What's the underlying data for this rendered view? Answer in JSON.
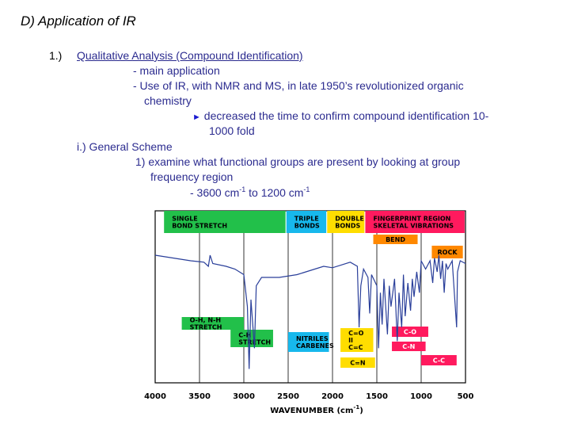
{
  "slide": {
    "title": "D) Application of IR",
    "item_number": "1.)",
    "heading": "Qualitative Analysis (Compound Identification)",
    "line1": "- main application",
    "line2": "- Use of IR, with NMR and MS, in late 1950’s revolutionized organic",
    "line2b": "chemistry",
    "bullet_glyph": "►",
    "line3": "decreased the time to confirm compound identification 10-",
    "line3b": "1000 fold",
    "sub_heading": "i.) General Scheme",
    "step1": "1) examine what functional groups are present by looking at group",
    "step1b": "frequency region",
    "range_prefix": "- 3600 cm",
    "range_exp1": "-1",
    "range_mid": " to 1200 cm",
    "range_exp2": "-1"
  },
  "chart_data": {
    "type": "line",
    "title": "",
    "xlabel_prefix": "WAVENUMBER (cm",
    "xlabel_exp": "-1",
    "xlabel_suffix": ")",
    "xlim": [
      4000,
      500
    ],
    "ylabel": "",
    "grid": true,
    "x_ticks": [
      "4000",
      "3500",
      "3000",
      "2500",
      "2000",
      "1500",
      "1000",
      "500"
    ],
    "regions": [
      {
        "name": "single-bond-stretch",
        "lines": [
          "SINGLE",
          "BOND STRETCH"
        ],
        "color": "#22c04a"
      },
      {
        "name": "triple-bonds",
        "lines": [
          "TRIPLE",
          "BONDS"
        ],
        "color": "#17b8ec"
      },
      {
        "name": "double-bonds",
        "lines": [
          "DOUBLE",
          "BONDS"
        ],
        "color": "#ffdd00"
      },
      {
        "name": "fingerprint-region",
        "lines": [
          "FINGERPRINT REGION",
          "SKELETAL VIBRATIONS"
        ],
        "color": "#ff1a5e"
      },
      {
        "name": "bend",
        "lines": [
          "BEND"
        ],
        "color": "#ff8800"
      },
      {
        "name": "rock",
        "lines": [
          "ROCK"
        ],
        "color": "#ff8800"
      }
    ],
    "annotations": [
      {
        "name": "oh-nh-stretch",
        "lines": [
          "O-H, N-H",
          "STRETCH"
        ],
        "color": "#22c04a"
      },
      {
        "name": "ch-stretch",
        "lines": [
          "C-H",
          "STRETCH"
        ],
        "color": "#22c04a"
      },
      {
        "name": "nitriles-carbenes",
        "lines": [
          "NITRILES",
          "CARBENES"
        ],
        "color": "#17b8ec"
      },
      {
        "name": "co-cc-double",
        "lines": [
          "C=O",
          "II",
          "C=C"
        ],
        "color": "#ffdd00"
      },
      {
        "name": "cn-double",
        "lines": [
          "C=N"
        ],
        "color": "#ffdd00"
      },
      {
        "name": "c-o-single",
        "lines": [
          "C-O"
        ],
        "color": "#ff1a5e"
      },
      {
        "name": "c-n-single",
        "lines": [
          "C-N"
        ],
        "color": "#ff1a5e"
      },
      {
        "name": "c-c-single",
        "lines": [
          "C-C"
        ],
        "color": "#ff1a5e"
      }
    ],
    "spectrum": [
      [
        4000,
        8
      ],
      [
        3800,
        10
      ],
      [
        3600,
        12
      ],
      [
        3450,
        13
      ],
      [
        3400,
        16
      ],
      [
        3380,
        8
      ],
      [
        3350,
        14
      ],
      [
        3200,
        16
      ],
      [
        3100,
        18
      ],
      [
        3000,
        22
      ],
      [
        2960,
        45
      ],
      [
        2940,
        90
      ],
      [
        2920,
        40
      ],
      [
        2880,
        75
      ],
      [
        2860,
        30
      ],
      [
        2800,
        24
      ],
      [
        2600,
        24
      ],
      [
        2400,
        22
      ],
      [
        2200,
        18
      ],
      [
        2100,
        16
      ],
      [
        2000,
        17
      ],
      [
        1900,
        15
      ],
      [
        1800,
        13
      ],
      [
        1720,
        16
      ],
      [
        1700,
        60
      ],
      [
        1680,
        30
      ],
      [
        1650,
        18
      ],
      [
        1600,
        24
      ],
      [
        1580,
        50
      ],
      [
        1560,
        22
      ],
      [
        1500,
        30
      ],
      [
        1480,
        75
      ],
      [
        1460,
        35
      ],
      [
        1440,
        58
      ],
      [
        1420,
        25
      ],
      [
        1380,
        65
      ],
      [
        1360,
        30
      ],
      [
        1340,
        45
      ],
      [
        1300,
        25
      ],
      [
        1270,
        70
      ],
      [
        1250,
        35
      ],
      [
        1220,
        60
      ],
      [
        1200,
        22
      ],
      [
        1180,
        52
      ],
      [
        1150,
        28
      ],
      [
        1120,
        48
      ],
      [
        1100,
        25
      ],
      [
        1080,
        38
      ],
      [
        1050,
        20
      ],
      [
        1020,
        35
      ],
      [
        1000,
        12
      ],
      [
        950,
        18
      ],
      [
        900,
        12
      ],
      [
        870,
        28
      ],
      [
        850,
        10
      ],
      [
        820,
        20
      ],
      [
        800,
        8
      ],
      [
        780,
        25
      ],
      [
        760,
        12
      ],
      [
        740,
        35
      ],
      [
        720,
        14
      ],
      [
        700,
        18
      ],
      [
        650,
        12
      ],
      [
        600,
        60
      ],
      [
        590,
        20
      ],
      [
        560,
        12
      ],
      [
        500,
        14
      ]
    ]
  }
}
